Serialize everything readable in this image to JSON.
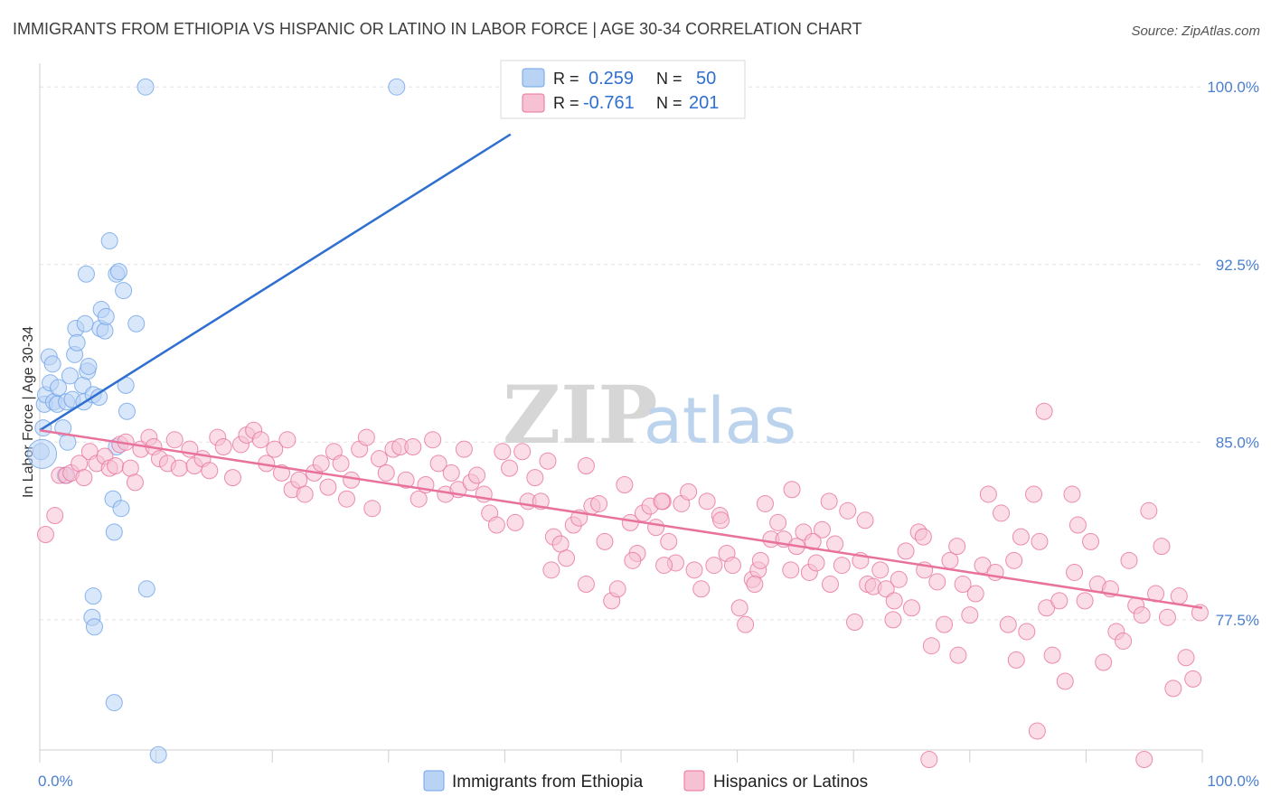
{
  "title": "IMMIGRANTS FROM ETHIOPIA VS HISPANIC OR LATINO IN LABOR FORCE | AGE 30-34 CORRELATION CHART",
  "source": "Source: ZipAtlas.com",
  "watermark": {
    "zip": "ZIP",
    "atlas": "atlas"
  },
  "chart_data": {
    "type": "scatter",
    "ylabel": "In Labor Force | Age 30-34",
    "xlabel": "",
    "xlim": [
      0,
      100
    ],
    "ylim": [
      72,
      101
    ],
    "x_tick_labels": [
      "0.0%",
      "100.0%"
    ],
    "y_ticks": [
      77.5,
      85.0,
      92.5,
      100.0
    ],
    "y_tick_labels": [
      "77.5%",
      "85.0%",
      "92.5%",
      "100.0%"
    ],
    "grid": true,
    "legend_position": "top-center",
    "series": [
      {
        "name": "Immigrants from Ethiopia",
        "color": "#6fa3e8",
        "fill": "#b9d3f5",
        "R": "0.259",
        "N": "50",
        "trend": {
          "x": [
            0,
            40.5
          ],
          "y": [
            85.5,
            98.0
          ]
        },
        "points": [
          [
            0.1,
            84.6
          ],
          [
            0.3,
            85.6
          ],
          [
            0.4,
            86.6
          ],
          [
            0.5,
            87.0
          ],
          [
            0.8,
            88.6
          ],
          [
            0.9,
            87.5
          ],
          [
            1.2,
            86.7
          ],
          [
            1.1,
            88.3
          ],
          [
            1.5,
            86.6
          ],
          [
            1.6,
            87.3
          ],
          [
            2.0,
            85.6
          ],
          [
            2.2,
            83.6
          ],
          [
            2.3,
            86.7
          ],
          [
            2.4,
            85.0
          ],
          [
            2.6,
            87.8
          ],
          [
            2.8,
            86.8
          ],
          [
            3.0,
            88.7
          ],
          [
            3.1,
            89.8
          ],
          [
            3.2,
            89.2
          ],
          [
            3.7,
            87.4
          ],
          [
            3.8,
            86.7
          ],
          [
            3.9,
            90.0
          ],
          [
            4.0,
            92.1
          ],
          [
            4.1,
            88.0
          ],
          [
            4.2,
            88.2
          ],
          [
            4.6,
            87.0
          ],
          [
            5.1,
            86.9
          ],
          [
            5.2,
            89.8
          ],
          [
            5.3,
            90.6
          ],
          [
            5.6,
            89.7
          ],
          [
            5.7,
            90.3
          ],
          [
            6.0,
            93.5
          ],
          [
            6.3,
            82.6
          ],
          [
            6.6,
            92.1
          ],
          [
            6.8,
            92.2
          ],
          [
            7.0,
            82.2
          ],
          [
            7.2,
            91.4
          ],
          [
            7.4,
            87.4
          ],
          [
            7.5,
            86.3
          ],
          [
            8.3,
            90.0
          ],
          [
            6.6,
            84.8
          ],
          [
            6.4,
            81.2
          ],
          [
            4.6,
            78.5
          ],
          [
            4.5,
            77.6
          ],
          [
            4.7,
            77.2
          ],
          [
            6.4,
            74.0
          ],
          [
            9.2,
            78.8
          ],
          [
            10.2,
            71.8
          ],
          [
            9.1,
            100.0
          ],
          [
            30.7,
            100.0
          ]
        ]
      },
      {
        "name": "Hispanics or Latinos",
        "color": "#e8729c",
        "fill": "#f6c1d3",
        "R": "-0.761",
        "N": "201",
        "trend": {
          "x": [
            0,
            100
          ],
          "y": [
            85.5,
            78.0
          ]
        },
        "points": [
          [
            0.5,
            81.1
          ],
          [
            1.3,
            81.9
          ],
          [
            1.7,
            83.6
          ],
          [
            2.3,
            83.6
          ],
          [
            2.7,
            83.7
          ],
          [
            3.4,
            84.1
          ],
          [
            3.8,
            83.5
          ],
          [
            4.3,
            84.6
          ],
          [
            4.9,
            84.1
          ],
          [
            5.6,
            84.4
          ],
          [
            6.0,
            83.9
          ],
          [
            6.5,
            84.0
          ],
          [
            6.9,
            84.9
          ],
          [
            7.4,
            85.0
          ],
          [
            7.8,
            83.9
          ],
          [
            8.2,
            83.3
          ],
          [
            8.7,
            84.7
          ],
          [
            9.4,
            85.2
          ],
          [
            9.8,
            84.8
          ],
          [
            10.3,
            84.3
          ],
          [
            11.0,
            84.1
          ],
          [
            11.6,
            85.1
          ],
          [
            12.0,
            83.9
          ],
          [
            12.9,
            84.7
          ],
          [
            13.3,
            84.0
          ],
          [
            14.0,
            84.3
          ],
          [
            14.6,
            83.8
          ],
          [
            15.3,
            85.2
          ],
          [
            15.8,
            84.8
          ],
          [
            16.6,
            83.5
          ],
          [
            17.3,
            84.9
          ],
          [
            17.8,
            85.3
          ],
          [
            18.4,
            85.5
          ],
          [
            19.0,
            85.1
          ],
          [
            19.5,
            84.1
          ],
          [
            20.2,
            84.7
          ],
          [
            20.8,
            83.7
          ],
          [
            21.3,
            85.1
          ],
          [
            21.7,
            83.0
          ],
          [
            22.3,
            83.4
          ],
          [
            22.8,
            82.8
          ],
          [
            23.6,
            83.7
          ],
          [
            24.2,
            84.1
          ],
          [
            24.8,
            83.1
          ],
          [
            25.3,
            84.6
          ],
          [
            25.9,
            84.1
          ],
          [
            26.4,
            82.6
          ],
          [
            26.8,
            83.4
          ],
          [
            27.5,
            84.7
          ],
          [
            28.1,
            85.2
          ],
          [
            28.6,
            82.2
          ],
          [
            29.2,
            84.3
          ],
          [
            29.8,
            83.7
          ],
          [
            30.4,
            84.7
          ],
          [
            31.0,
            84.8
          ],
          [
            31.5,
            83.4
          ],
          [
            32.1,
            84.8
          ],
          [
            32.6,
            82.6
          ],
          [
            33.2,
            83.2
          ],
          [
            33.8,
            85.1
          ],
          [
            34.3,
            84.1
          ],
          [
            34.9,
            82.8
          ],
          [
            35.4,
            83.7
          ],
          [
            36.0,
            83.0
          ],
          [
            36.5,
            84.7
          ],
          [
            37.1,
            83.3
          ],
          [
            37.6,
            83.6
          ],
          [
            38.2,
            82.8
          ],
          [
            38.7,
            82.0
          ],
          [
            39.3,
            81.5
          ],
          [
            39.8,
            84.6
          ],
          [
            40.4,
            83.9
          ],
          [
            40.9,
            81.6
          ],
          [
            41.5,
            84.6
          ],
          [
            42.0,
            82.5
          ],
          [
            42.6,
            83.5
          ],
          [
            43.1,
            82.5
          ],
          [
            43.7,
            84.2
          ],
          [
            44.2,
            81.0
          ],
          [
            44.8,
            80.7
          ],
          [
            45.3,
            80.1
          ],
          [
            45.9,
            81.5
          ],
          [
            46.4,
            81.8
          ],
          [
            47.0,
            84.0
          ],
          [
            47.5,
            82.3
          ],
          [
            48.1,
            82.4
          ],
          [
            48.6,
            80.8
          ],
          [
            49.2,
            78.3
          ],
          [
            49.7,
            78.8
          ],
          [
            50.3,
            83.2
          ],
          [
            50.8,
            81.6
          ],
          [
            51.4,
            80.3
          ],
          [
            51.9,
            82.0
          ],
          [
            52.5,
            82.3
          ],
          [
            53.0,
            81.4
          ],
          [
            53.6,
            82.5
          ],
          [
            54.1,
            80.8
          ],
          [
            54.7,
            79.9
          ],
          [
            55.2,
            82.4
          ],
          [
            55.8,
            82.9
          ],
          [
            56.3,
            79.6
          ],
          [
            56.9,
            78.8
          ],
          [
            57.4,
            82.5
          ],
          [
            58.0,
            79.8
          ],
          [
            58.5,
            81.9
          ],
          [
            59.1,
            80.3
          ],
          [
            59.6,
            79.8
          ],
          [
            60.2,
            78.0
          ],
          [
            60.7,
            77.3
          ],
          [
            61.3,
            79.2
          ],
          [
            61.8,
            79.6
          ],
          [
            62.4,
            82.4
          ],
          [
            62.9,
            80.9
          ],
          [
            63.5,
            81.6
          ],
          [
            64.0,
            80.9
          ],
          [
            64.6,
            79.6
          ],
          [
            65.1,
            80.6
          ],
          [
            65.7,
            81.2
          ],
          [
            66.2,
            79.5
          ],
          [
            66.8,
            79.9
          ],
          [
            67.3,
            81.3
          ],
          [
            67.9,
            82.5
          ],
          [
            68.4,
            80.7
          ],
          [
            69.0,
            79.8
          ],
          [
            69.5,
            82.1
          ],
          [
            70.1,
            77.4
          ],
          [
            70.6,
            80.0
          ],
          [
            71.2,
            79.0
          ],
          [
            71.7,
            78.9
          ],
          [
            72.3,
            79.6
          ],
          [
            72.8,
            78.8
          ],
          [
            73.4,
            77.5
          ],
          [
            73.9,
            79.2
          ],
          [
            74.5,
            80.4
          ],
          [
            75.0,
            78.0
          ],
          [
            75.6,
            81.2
          ],
          [
            76.1,
            79.6
          ],
          [
            76.7,
            76.4
          ],
          [
            77.2,
            79.1
          ],
          [
            77.8,
            77.3
          ],
          [
            78.3,
            80.0
          ],
          [
            78.9,
            80.6
          ],
          [
            79.4,
            79.0
          ],
          [
            80.0,
            77.7
          ],
          [
            80.5,
            78.6
          ],
          [
            81.1,
            79.8
          ],
          [
            81.6,
            82.8
          ],
          [
            82.2,
            79.5
          ],
          [
            82.7,
            82.0
          ],
          [
            83.3,
            77.3
          ],
          [
            83.8,
            80.0
          ],
          [
            84.4,
            81.0
          ],
          [
            84.9,
            77.0
          ],
          [
            85.5,
            82.8
          ],
          [
            86.0,
            80.8
          ],
          [
            86.6,
            78.0
          ],
          [
            87.1,
            76.0
          ],
          [
            87.7,
            78.3
          ],
          [
            88.2,
            74.9
          ],
          [
            88.8,
            82.8
          ],
          [
            89.3,
            81.5
          ],
          [
            89.9,
            78.3
          ],
          [
            90.4,
            80.8
          ],
          [
            91.0,
            79.0
          ],
          [
            91.5,
            75.7
          ],
          [
            92.1,
            78.8
          ],
          [
            92.6,
            77.0
          ],
          [
            93.2,
            76.6
          ],
          [
            93.7,
            80.0
          ],
          [
            94.3,
            78.1
          ],
          [
            94.8,
            77.7
          ],
          [
            95.4,
            82.1
          ],
          [
            96.0,
            78.6
          ],
          [
            96.5,
            80.6
          ],
          [
            97.0,
            77.6
          ],
          [
            97.5,
            74.6
          ],
          [
            98.0,
            78.5
          ],
          [
            98.6,
            75.9
          ],
          [
            99.2,
            75.0
          ],
          [
            99.8,
            77.8
          ],
          [
            47.0,
            79.0
          ],
          [
            51.0,
            80.0
          ],
          [
            53.5,
            82.5
          ],
          [
            58.6,
            81.7
          ],
          [
            61.5,
            79.0
          ],
          [
            64.7,
            83.0
          ],
          [
            66.5,
            80.8
          ],
          [
            68.0,
            79.0
          ],
          [
            71.0,
            81.7
          ],
          [
            73.5,
            78.3
          ],
          [
            76.0,
            81.0
          ],
          [
            79.0,
            76.0
          ],
          [
            84.0,
            75.8
          ],
          [
            85.8,
            72.8
          ],
          [
            95.0,
            71.6
          ],
          [
            76.5,
            71.6
          ],
          [
            89.0,
            79.5
          ],
          [
            62.0,
            80.0
          ],
          [
            53.7,
            79.8
          ],
          [
            44.0,
            79.6
          ],
          [
            86.4,
            86.3
          ]
        ]
      }
    ]
  }
}
